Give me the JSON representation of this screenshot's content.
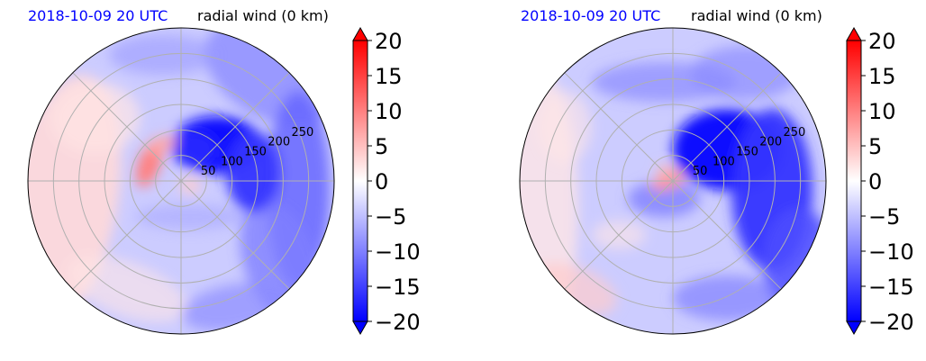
{
  "panels": [
    {
      "id": "left",
      "time_label": "2018-10-09 20 UTC",
      "variable_label": "radial wind (0 km)"
    },
    {
      "id": "right",
      "time_label": "2018-10-09 20 UTC",
      "variable_label": "radial wind (0 km)"
    }
  ],
  "colors": {
    "time_label": "#0000ff",
    "min_color": "#0000ff",
    "mid_color": "#ffffff",
    "max_color": "#ff0000",
    "grid": "#b0b0b0"
  },
  "chart_data": [
    {
      "type": "heatmap",
      "projection": "polar",
      "title_left": "2018-10-09 20 UTC",
      "title_right": "radial wind (0 km)",
      "radial_ticks": [
        "50",
        "100",
        "150",
        "200",
        "250"
      ],
      "radial_tick_values": [
        50,
        100,
        150,
        200,
        250
      ],
      "angular_gridlines_deg": [
        0,
        45,
        90,
        135,
        180,
        225,
        270,
        315
      ],
      "colorbar": {
        "ticks": [
          "20",
          "15",
          "10",
          "5",
          "0",
          "−5",
          "−10",
          "−15",
          "−20"
        ],
        "tick_values": [
          20,
          15,
          10,
          5,
          0,
          -5,
          -10,
          -15,
          -20
        ],
        "range": [
          -20,
          20
        ],
        "extend": "both",
        "colormap": "bwr"
      },
      "features": [
        {
          "name": "strong negative inflow",
          "value": -18,
          "region": "north-east quadrant, 40-170 km"
        },
        {
          "name": "broad negative band",
          "value": -10,
          "region": "east to south, 100-300 km"
        },
        {
          "name": "positive crescent",
          "value": 7,
          "region": "west of center, 30-60 km"
        },
        {
          "name": "weak positive",
          "value": 3,
          "region": "west outer region"
        }
      ]
    },
    {
      "type": "heatmap",
      "projection": "polar",
      "title_left": "2018-10-09 20 UTC",
      "title_right": "radial wind (0 km)",
      "radial_ticks": [
        "50",
        "100",
        "150",
        "200",
        "250"
      ],
      "radial_tick_values": [
        50,
        100,
        150,
        200,
        250
      ],
      "angular_gridlines_deg": [
        0,
        45,
        90,
        135,
        180,
        225,
        270,
        315
      ],
      "colorbar": {
        "ticks": [
          "20",
          "15",
          "10",
          "5",
          "0",
          "−5",
          "−10",
          "−15",
          "−20"
        ],
        "tick_values": [
          20,
          15,
          10,
          5,
          0,
          -5,
          -10,
          -15,
          -20
        ],
        "range": [
          -20,
          20
        ],
        "extend": "both",
        "colormap": "bwr"
      },
      "features": [
        {
          "name": "strong negative inflow",
          "value": -18,
          "region": "north-east quadrant, 20-180 km"
        },
        {
          "name": "broad negative band",
          "value": -12,
          "region": "east to south, 100-300 km"
        },
        {
          "name": "small positive core",
          "value": 8,
          "region": "west of center, 10-30 km"
        },
        {
          "name": "weak positive",
          "value": 3,
          "region": "south-west and west outer region"
        }
      ]
    }
  ]
}
